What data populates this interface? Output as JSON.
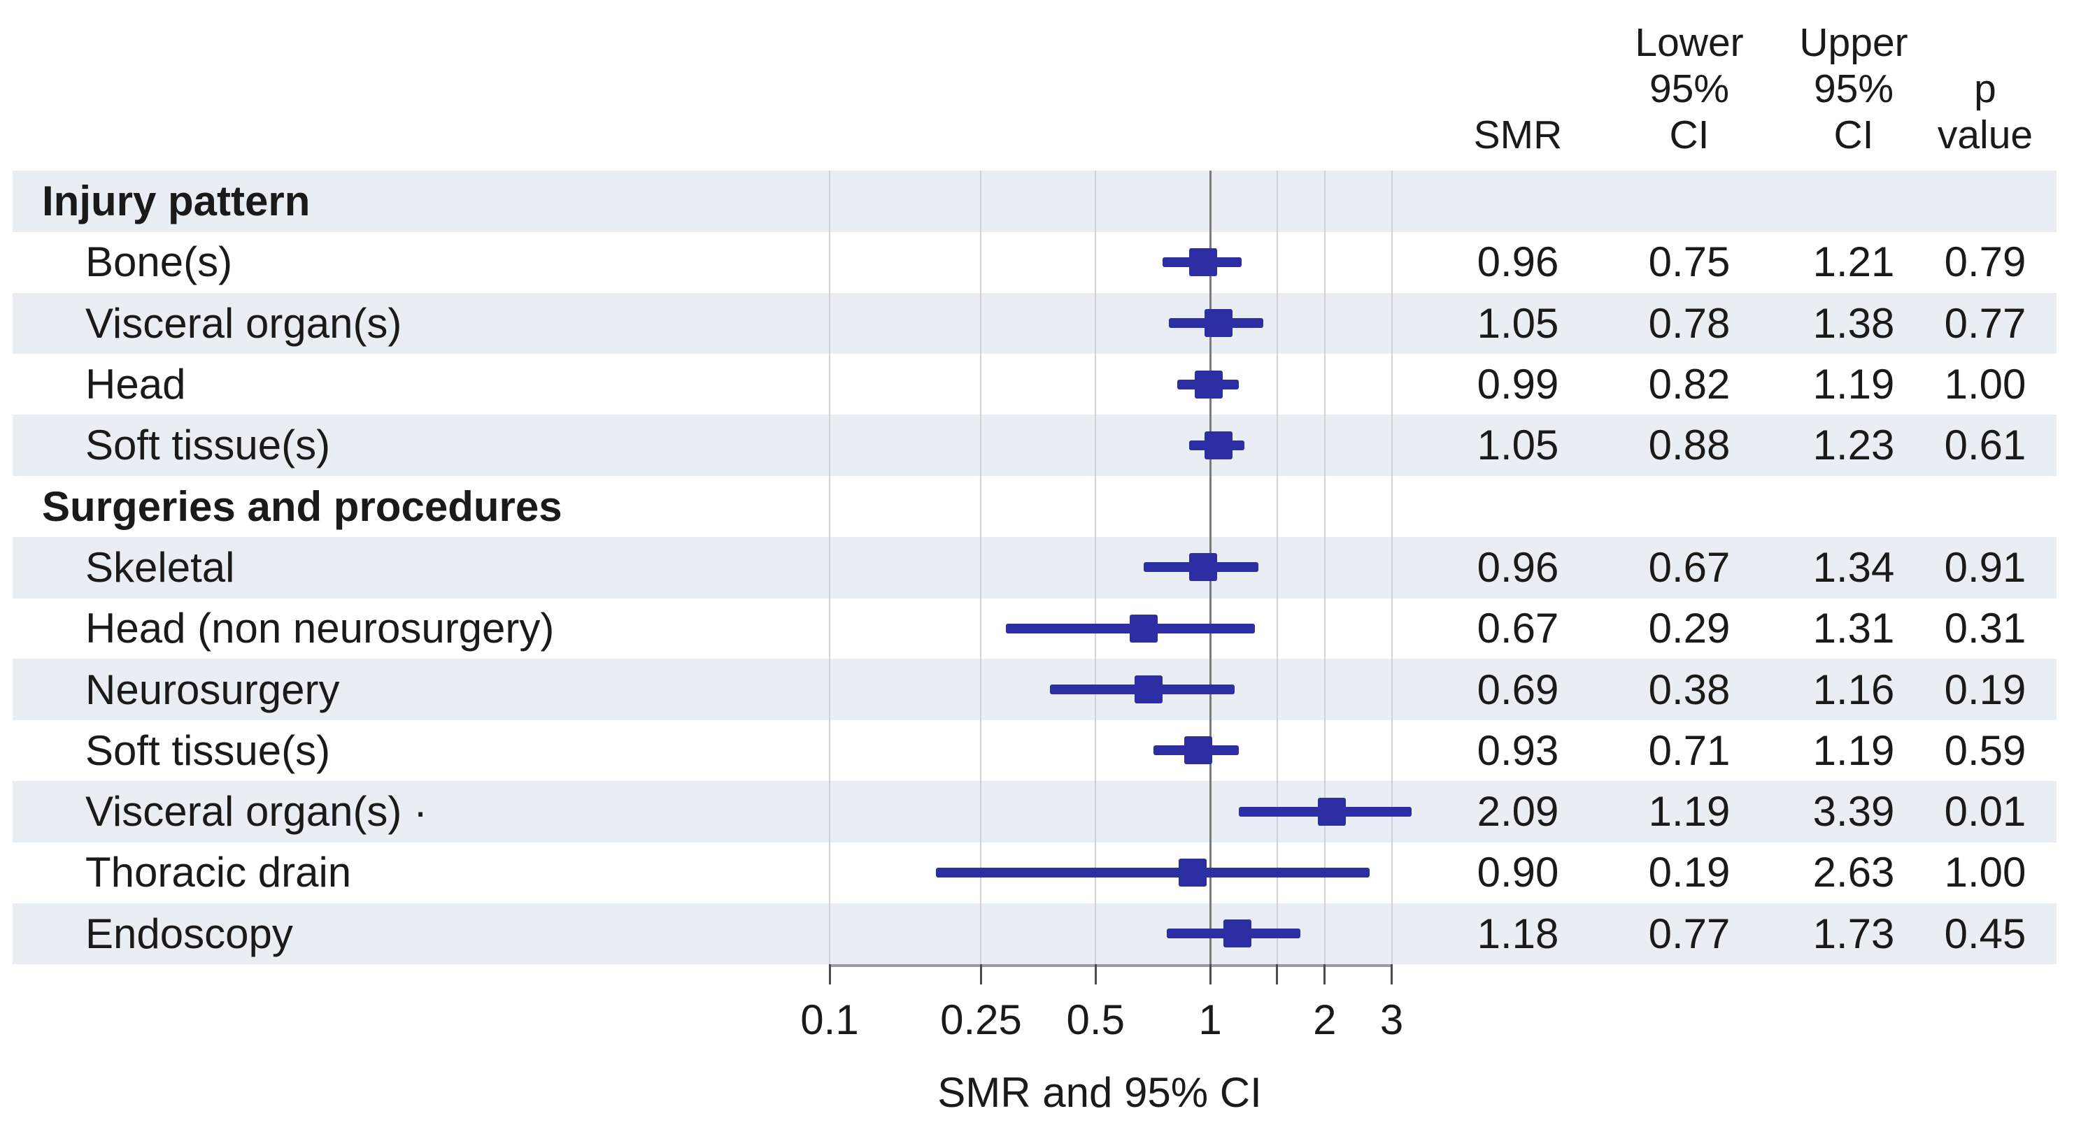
{
  "chart_data": {
    "type": "forest",
    "title": "",
    "xlabel": "SMR and 95% CI",
    "x_scale": "log10",
    "x_axis_range": [
      0.1,
      3
    ],
    "x_tick_values": [
      0.1,
      0.25,
      0.5,
      1,
      1.5,
      2,
      3
    ],
    "x_tick_labels": [
      "0.1",
      "0.25",
      "0.5",
      "1",
      "",
      "2",
      "3"
    ],
    "grid": true,
    "reference_line": 1,
    "column_headers": [
      {
        "id": "smr",
        "lines": [
          "SMR"
        ]
      },
      {
        "id": "lower",
        "lines": [
          "Lower",
          "95%",
          "CI"
        ]
      },
      {
        "id": "upper",
        "lines": [
          "Upper",
          "95%",
          "CI"
        ]
      },
      {
        "id": "p",
        "lines": [
          "p",
          "value"
        ]
      }
    ],
    "groups": [
      {
        "label": "Injury pattern",
        "rows": [
          {
            "label": "Bone(s)",
            "smr": "0.96",
            "lower": "0.75",
            "upper": "1.21",
            "p": "0.79"
          },
          {
            "label": "Visceral organ(s)",
            "smr": "1.05",
            "lower": "0.78",
            "upper": "1.38",
            "p": "0.77"
          },
          {
            "label": "Head",
            "smr": "0.99",
            "lower": "0.82",
            "upper": "1.19",
            "p": "1.00"
          },
          {
            "label": "Soft tissue(s)",
            "smr": "1.05",
            "lower": "0.88",
            "upper": "1.23",
            "p": "0.61"
          }
        ]
      },
      {
        "label": "Surgeries and procedures",
        "rows": [
          {
            "label": "Skeletal",
            "smr": "0.96",
            "lower": "0.67",
            "upper": "1.34",
            "p": "0.91"
          },
          {
            "label": "Head (non neurosurgery)",
            "smr": "0.67",
            "lower": "0.29",
            "upper": "1.31",
            "p": "0.31"
          },
          {
            "label": "Neurosurgery",
            "smr": "0.69",
            "lower": "0.38",
            "upper": "1.16",
            "p": "0.19"
          },
          {
            "label": "Soft tissue(s)",
            "smr": "0.93",
            "lower": "0.71",
            "upper": "1.19",
            "p": "0.59"
          },
          {
            "label": "Visceral organ(s) ·",
            "smr": "2.09",
            "lower": "1.19",
            "upper": "3.39",
            "p": "0.01"
          },
          {
            "label": "Thoracic drain",
            "smr": "0.90",
            "lower": "0.19",
            "upper": "2.63",
            "p": "1.00"
          },
          {
            "label": "Endoscopy",
            "smr": "1.18",
            "lower": "0.77",
            "upper": "1.73",
            "p": "0.45"
          }
        ]
      }
    ]
  },
  "colors": {
    "marker_blue": "#2e2ea4",
    "band_shade": "#e9edf4",
    "gridline": "#d2d2d6",
    "reference_line": "#7b7b7b",
    "axis_line": "#9c9ca0",
    "tick": "#4c4c4c",
    "text": "#1a1a1a"
  }
}
